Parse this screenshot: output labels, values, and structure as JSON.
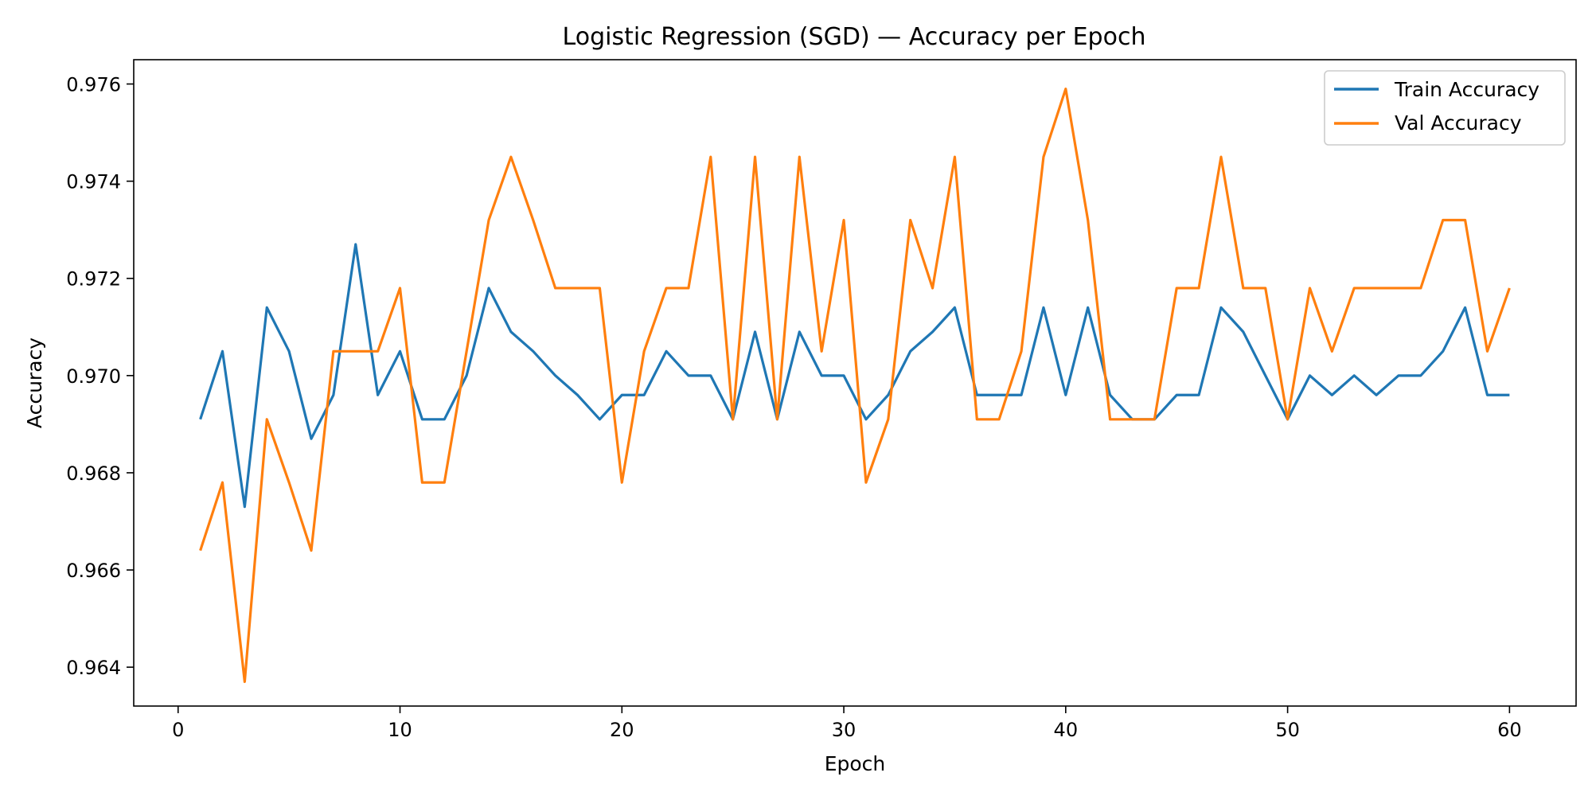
{
  "chart_data": {
    "type": "line",
    "title": "Logistic Regression (SGD) — Accuracy per Epoch",
    "xlabel": "Epoch",
    "ylabel": "Accuracy",
    "xlim": [
      -2,
      63
    ],
    "ylim": [
      0.9632,
      0.9765
    ],
    "xticks": [
      0,
      10,
      20,
      30,
      40,
      50,
      60
    ],
    "yticks": [
      0.964,
      0.966,
      0.968,
      0.97,
      0.972,
      0.974,
      0.976
    ],
    "ytick_labels": [
      "0.964",
      "0.966",
      "0.968",
      "0.970",
      "0.972",
      "0.974",
      "0.976"
    ],
    "grid": false,
    "legend_position": "top-right",
    "x": [
      1,
      2,
      3,
      4,
      5,
      6,
      7,
      8,
      9,
      10,
      11,
      12,
      13,
      14,
      15,
      16,
      17,
      18,
      19,
      20,
      21,
      22,
      23,
      24,
      25,
      26,
      27,
      28,
      29,
      30,
      31,
      32,
      33,
      34,
      35,
      36,
      37,
      38,
      39,
      40,
      41,
      42,
      43,
      44,
      45,
      46,
      47,
      48,
      49,
      50,
      51,
      52,
      53,
      54,
      55,
      56,
      57,
      58,
      59,
      60
    ],
    "series": [
      {
        "name": "Train Accuracy",
        "color": "#1f77b4",
        "values": [
          0.9691,
          0.9705,
          0.9673,
          0.9714,
          0.9705,
          0.9687,
          0.9696,
          0.9727,
          0.9696,
          0.9705,
          0.9691,
          0.9691,
          0.97,
          0.9718,
          0.9709,
          0.9705,
          0.97,
          0.9696,
          0.9691,
          0.9696,
          0.9696,
          0.9705,
          0.97,
          0.97,
          0.9691,
          0.9709,
          0.9691,
          0.9709,
          0.97,
          0.97,
          0.9691,
          0.9696,
          0.9705,
          0.9709,
          0.9714,
          0.9696,
          0.9696,
          0.9696,
          0.9714,
          0.9696,
          0.9714,
          0.9696,
          0.9691,
          0.9691,
          0.9696,
          0.9696,
          0.9714,
          0.9709,
          0.97,
          0.9691,
          0.97,
          0.9696,
          0.97,
          0.9696,
          0.97,
          0.97,
          0.9705,
          0.9714,
          0.9696,
          0.9696
        ]
      },
      {
        "name": "Val Accuracy",
        "color": "#ff7f0e",
        "values": [
          0.9664,
          0.9678,
          0.9637,
          0.9691,
          0.9678,
          0.9664,
          0.9705,
          0.9705,
          0.9705,
          0.9718,
          0.9678,
          0.9678,
          0.9705,
          0.9732,
          0.9745,
          0.9732,
          0.9718,
          0.9718,
          0.9718,
          0.9678,
          0.9705,
          0.9718,
          0.9718,
          0.9745,
          0.9691,
          0.9745,
          0.9691,
          0.9745,
          0.9705,
          0.9732,
          0.9678,
          0.9691,
          0.9732,
          0.9718,
          0.9745,
          0.9691,
          0.9691,
          0.9705,
          0.9745,
          0.9759,
          0.9732,
          0.9691,
          0.9691,
          0.9691,
          0.9718,
          0.9718,
          0.9745,
          0.9718,
          0.9718,
          0.9691,
          0.9718,
          0.9705,
          0.9718,
          0.9718,
          0.9718,
          0.9718,
          0.9732,
          0.9732,
          0.9705,
          0.9718
        ]
      }
    ]
  }
}
